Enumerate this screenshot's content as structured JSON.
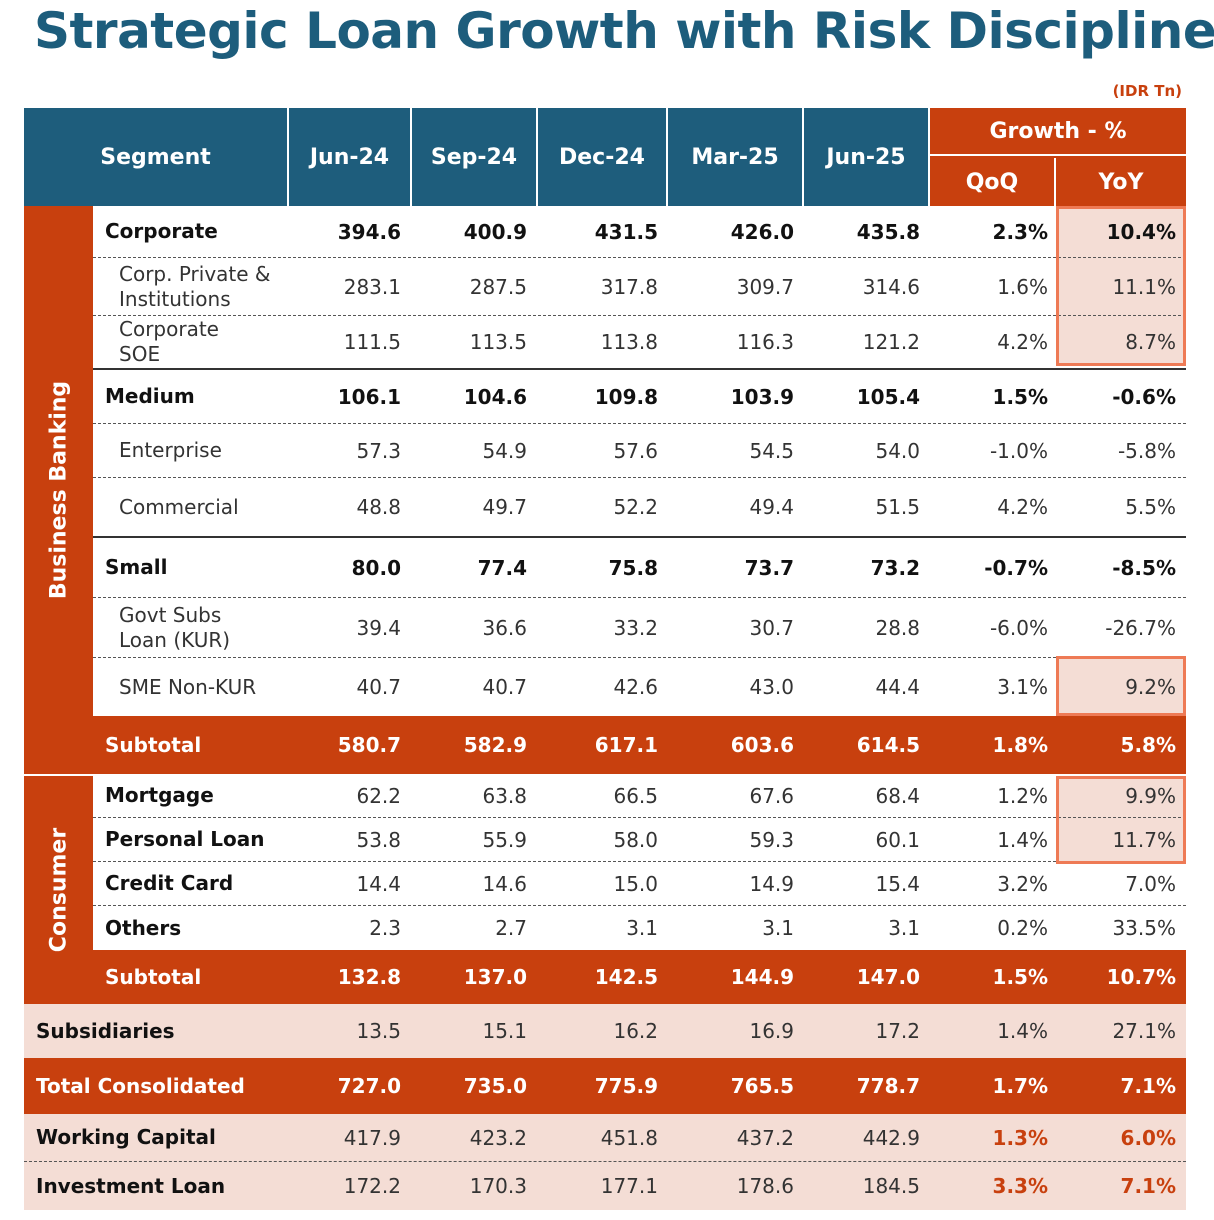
{
  "title": "Strategic Loan Growth with Risk Discipline",
  "unit": "(IDR Tn)",
  "header": {
    "segment": "Segment",
    "periods": [
      "Jun-24",
      "Sep-24",
      "Dec-24",
      "Mar-25",
      "Jun-25"
    ],
    "growth": "Growth - %",
    "qoq": "QoQ",
    "yoy": "YoY"
  },
  "sections": {
    "business_banking": "Business Banking",
    "consumer": "Consumer"
  },
  "rows": [
    {
      "label": "Corporate",
      "values": [
        "394.6",
        "400.9",
        "431.5",
        "426.0",
        "435.8"
      ],
      "qoq": "2.3%",
      "yoy": "10.4%"
    },
    {
      "label": "Corp. Private & Institutions",
      "values": [
        "283.1",
        "287.5",
        "317.8",
        "309.7",
        "314.6"
      ],
      "qoq": "1.6%",
      "yoy": "11.1%"
    },
    {
      "label": "Corporate SOE",
      "values": [
        "111.5",
        "113.5",
        "113.8",
        "116.3",
        "121.2"
      ],
      "qoq": "4.2%",
      "yoy": "8.7%"
    },
    {
      "label": "Medium",
      "values": [
        "106.1",
        "104.6",
        "109.8",
        "103.9",
        "105.4"
      ],
      "qoq": "1.5%",
      "yoy": "-0.6%"
    },
    {
      "label": "Enterprise",
      "values": [
        "57.3",
        "54.9",
        "57.6",
        "54.5",
        "54.0"
      ],
      "qoq": "-1.0%",
      "yoy": "-5.8%"
    },
    {
      "label": "Commercial",
      "values": [
        "48.8",
        "49.7",
        "52.2",
        "49.4",
        "51.5"
      ],
      "qoq": "4.2%",
      "yoy": "5.5%"
    },
    {
      "label": "Small",
      "values": [
        "80.0",
        "77.4",
        "75.8",
        "73.7",
        "73.2"
      ],
      "qoq": "-0.7%",
      "yoy": "-8.5%"
    },
    {
      "label": "Govt Subs Loan (KUR)",
      "values": [
        "39.4",
        "36.6",
        "33.2",
        "30.7",
        "28.8"
      ],
      "qoq": "-6.0%",
      "yoy": "-26.7%"
    },
    {
      "label": "SME Non-KUR",
      "values": [
        "40.7",
        "40.7",
        "42.6",
        "43.0",
        "44.4"
      ],
      "qoq": "3.1%",
      "yoy": "9.2%"
    },
    {
      "label": "Subtotal",
      "values": [
        "580.7",
        "582.9",
        "617.1",
        "603.6",
        "614.5"
      ],
      "qoq": "1.8%",
      "yoy": "5.8%"
    },
    {
      "label": "Mortgage",
      "values": [
        "62.2",
        "63.8",
        "66.5",
        "67.6",
        "68.4"
      ],
      "qoq": "1.2%",
      "yoy": "9.9%"
    },
    {
      "label": "Personal Loan",
      "values": [
        "53.8",
        "55.9",
        "58.0",
        "59.3",
        "60.1"
      ],
      "qoq": "1.4%",
      "yoy": "11.7%"
    },
    {
      "label": "Credit Card",
      "values": [
        "14.4",
        "14.6",
        "15.0",
        "14.9",
        "15.4"
      ],
      "qoq": "3.2%",
      "yoy": "7.0%"
    },
    {
      "label": "Others",
      "values": [
        "2.3",
        "2.7",
        "3.1",
        "3.1",
        "3.1"
      ],
      "qoq": "0.2%",
      "yoy": "33.5%"
    },
    {
      "label": "Subtotal",
      "values": [
        "132.8",
        "137.0",
        "142.5",
        "144.9",
        "147.0"
      ],
      "qoq": "1.5%",
      "yoy": "10.7%"
    },
    {
      "label": "Subsidiaries",
      "values": [
        "13.5",
        "15.1",
        "16.2",
        "16.9",
        "17.2"
      ],
      "qoq": "1.4%",
      "yoy": "27.1%"
    },
    {
      "label": "Total Consolidated",
      "values": [
        "727.0",
        "735.0",
        "775.9",
        "765.5",
        "778.7"
      ],
      "qoq": "1.7%",
      "yoy": "7.1%"
    },
    {
      "label": "Working Capital",
      "values": [
        "417.9",
        "423.2",
        "451.8",
        "437.2",
        "442.9"
      ],
      "qoq": "1.3%",
      "yoy": "6.0%"
    },
    {
      "label": "Investment Loan",
      "values": [
        "172.2",
        "170.3",
        "177.1",
        "178.6",
        "184.5"
      ],
      "qoq": "3.3%",
      "yoy": "7.1%"
    }
  ],
  "colors": {
    "navy": "#1e5d7c",
    "orange": "#c8400e",
    "pink": "#f4ddd5",
    "highlight_border": "#ee7a55"
  }
}
